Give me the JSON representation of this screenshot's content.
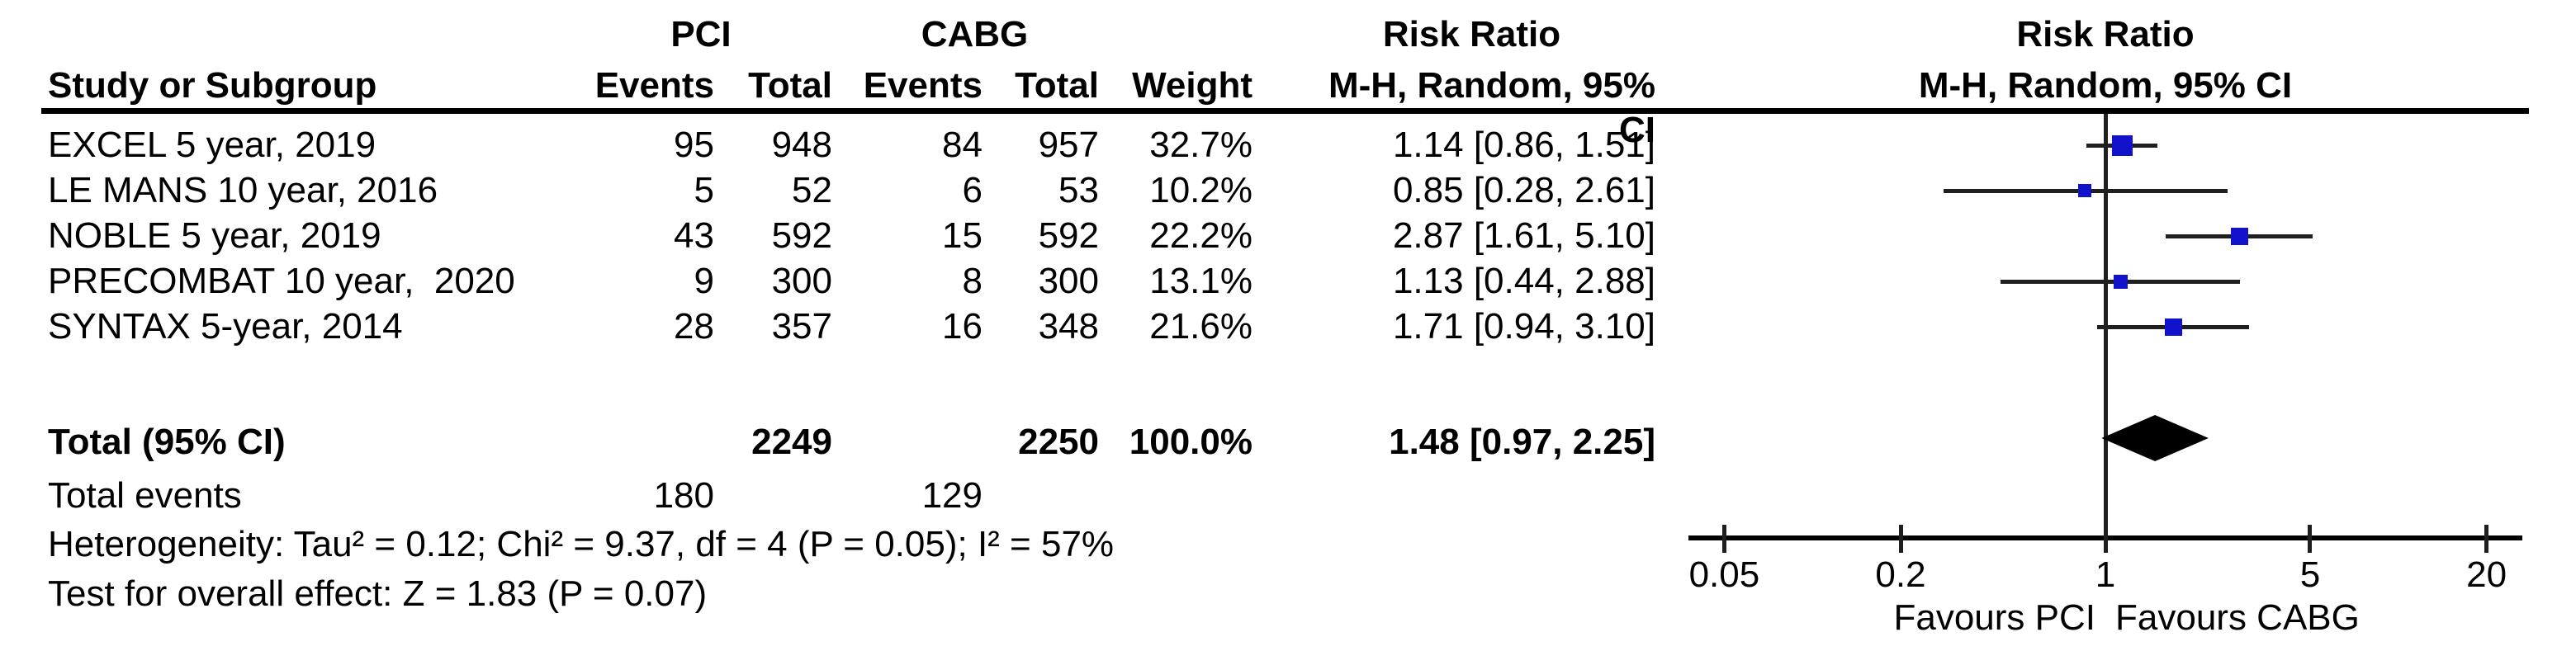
{
  "table": {
    "group_headers": {
      "pci": "PCI",
      "cabg": "CABG",
      "risk_ratio_col": "Risk Ratio",
      "risk_ratio_plot": "Risk Ratio"
    },
    "col_headers": {
      "study": "Study or Subgroup",
      "pci_events": "Events",
      "pci_total": "Total",
      "cabg_events": "Events",
      "cabg_total": "Total",
      "weight": "Weight",
      "mh_ci_col": "M-H, Random, 95% CI",
      "mh_ci_plot": "M-H, Random, 95% CI"
    }
  },
  "rows": [
    {
      "study": "EXCEL 5 year, 2019",
      "pci_events": "95",
      "pci_total": "948",
      "cabg_events": "84",
      "cabg_total": "957",
      "weight": "32.7%",
      "rr_text": "1.14 [0.86, 1.51]"
    },
    {
      "study": "LE MANS 10 year, 2016",
      "pci_events": "5",
      "pci_total": "52",
      "cabg_events": "6",
      "cabg_total": "53",
      "weight": "10.2%",
      "rr_text": "0.85 [0.28, 2.61]"
    },
    {
      "study": "NOBLE 5 year, 2019",
      "pci_events": "43",
      "pci_total": "592",
      "cabg_events": "15",
      "cabg_total": "592",
      "weight": "22.2%",
      "rr_text": "2.87 [1.61, 5.10]"
    },
    {
      "study": "PRECOMBAT 10 year,  2020",
      "pci_events": "9",
      "pci_total": "300",
      "cabg_events": "8",
      "cabg_total": "300",
      "weight": "13.1%",
      "rr_text": "1.13 [0.44, 2.88]"
    },
    {
      "study": "SYNTAX 5-year, 2014",
      "pci_events": "28",
      "pci_total": "357",
      "cabg_events": "16",
      "cabg_total": "348",
      "weight": "21.6%",
      "rr_text": "1.71 [0.94, 3.10]"
    }
  ],
  "totals": {
    "label": "Total (95% CI)",
    "pci_total": "2249",
    "cabg_total": "2250",
    "weight": "100.0%",
    "rr_text": "1.48 [0.97, 2.25]"
  },
  "total_events": {
    "label": "Total events",
    "pci": "180",
    "cabg": "129"
  },
  "footnotes": {
    "heterogeneity": "Heterogeneity: Tau² = 0.12; Chi² = 9.37, df = 4 (P = 0.05); I² = 57%",
    "overall_effect": "Test for overall effect: Z = 1.83 (P = 0.07)"
  },
  "chart_data": {
    "type": "forest",
    "x_scale": "log",
    "x_range": [
      0.05,
      20
    ],
    "axis_ticks": [
      0.05,
      0.2,
      1,
      5,
      20
    ],
    "null_value": 1,
    "favours_left": "Favours PCI",
    "favours_right": "Favours CABG",
    "marker_color": "#1212CC",
    "line_color": "#1f1f1f",
    "diamond_color": "#000000",
    "studies": [
      {
        "name": "EXCEL 5 year, 2019",
        "rr": 1.14,
        "ci_low": 0.86,
        "ci_high": 1.51,
        "weight_pct": 32.7
      },
      {
        "name": "LE MANS 10 year, 2016",
        "rr": 0.85,
        "ci_low": 0.28,
        "ci_high": 2.61,
        "weight_pct": 10.2
      },
      {
        "name": "NOBLE 5 year, 2019",
        "rr": 2.87,
        "ci_low": 1.61,
        "ci_high": 5.1,
        "weight_pct": 22.2
      },
      {
        "name": "PRECOMBAT 10 year,  2020",
        "rr": 1.13,
        "ci_low": 0.44,
        "ci_high": 2.88,
        "weight_pct": 13.1
      },
      {
        "name": "SYNTAX 5-year, 2014",
        "rr": 1.71,
        "ci_low": 0.94,
        "ci_high": 3.1,
        "weight_pct": 21.6
      }
    ],
    "total": {
      "rr": 1.48,
      "ci_low": 0.97,
      "ci_high": 2.25
    }
  }
}
